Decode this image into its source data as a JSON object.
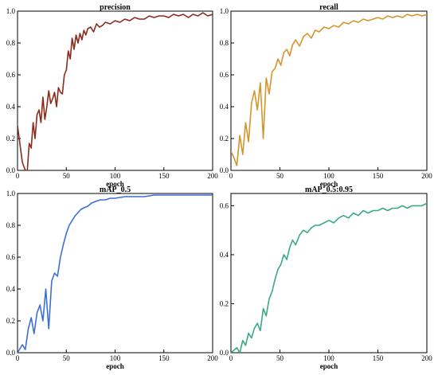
{
  "chart_data": [
    {
      "type": "line",
      "title": "precision",
      "xlabel": "epoch",
      "ylabel": "",
      "xlim": [
        0,
        200
      ],
      "ylim": [
        0,
        1.0
      ],
      "xticks": [
        0,
        50,
        100,
        150,
        200
      ],
      "yticks": [
        0,
        0.2,
        0.4,
        0.6,
        0.8,
        1.0
      ],
      "grid": false,
      "series": [
        {
          "color": "#8b2b1a",
          "x": [
            0,
            5,
            8,
            10,
            12,
            14,
            16,
            18,
            20,
            22,
            24,
            26,
            28,
            30,
            32,
            34,
            36,
            38,
            40,
            42,
            44,
            46,
            48,
            50,
            52,
            54,
            56,
            58,
            60,
            62,
            64,
            66,
            68,
            70,
            72,
            75,
            78,
            81,
            84,
            87,
            90,
            95,
            100,
            105,
            110,
            115,
            120,
            125,
            130,
            135,
            140,
            145,
            150,
            155,
            160,
            165,
            170,
            175,
            180,
            185,
            190,
            195,
            200
          ],
          "values": [
            0.28,
            0.05,
            0.0,
            0.0,
            0.17,
            0.14,
            0.3,
            0.2,
            0.35,
            0.38,
            0.3,
            0.46,
            0.32,
            0.4,
            0.5,
            0.42,
            0.45,
            0.49,
            0.4,
            0.52,
            0.49,
            0.48,
            0.6,
            0.63,
            0.75,
            0.7,
            0.83,
            0.76,
            0.85,
            0.8,
            0.86,
            0.82,
            0.88,
            0.85,
            0.89,
            0.9,
            0.87,
            0.92,
            0.9,
            0.91,
            0.93,
            0.92,
            0.94,
            0.93,
            0.95,
            0.94,
            0.96,
            0.95,
            0.95,
            0.97,
            0.96,
            0.97,
            0.97,
            0.96,
            0.98,
            0.97,
            0.98,
            0.96,
            0.98,
            0.97,
            0.99,
            0.97,
            0.98
          ]
        }
      ]
    },
    {
      "type": "line",
      "title": "recall",
      "xlabel": "epoch",
      "ylabel": "",
      "xlim": [
        0,
        200
      ],
      "ylim": [
        0,
        1.0
      ],
      "xticks": [
        0,
        50,
        100,
        150,
        200
      ],
      "yticks": [
        0,
        0.2,
        0.4,
        0.6,
        0.8,
        1.0
      ],
      "grid": false,
      "series": [
        {
          "color": "#d4952a",
          "x": [
            0,
            3,
            6,
            9,
            12,
            15,
            18,
            21,
            24,
            27,
            30,
            33,
            36,
            39,
            42,
            45,
            48,
            51,
            54,
            57,
            60,
            63,
            66,
            70,
            74,
            78,
            82,
            86,
            90,
            95,
            100,
            105,
            110,
            115,
            120,
            125,
            130,
            135,
            140,
            145,
            150,
            155,
            160,
            165,
            170,
            175,
            180,
            185,
            190,
            195,
            200
          ],
          "values": [
            0.12,
            0.08,
            0.03,
            0.22,
            0.1,
            0.3,
            0.18,
            0.42,
            0.5,
            0.38,
            0.55,
            0.2,
            0.58,
            0.48,
            0.62,
            0.64,
            0.7,
            0.66,
            0.74,
            0.76,
            0.72,
            0.79,
            0.82,
            0.78,
            0.84,
            0.86,
            0.83,
            0.88,
            0.87,
            0.9,
            0.89,
            0.91,
            0.9,
            0.93,
            0.92,
            0.94,
            0.93,
            0.95,
            0.94,
            0.95,
            0.96,
            0.95,
            0.97,
            0.96,
            0.97,
            0.96,
            0.98,
            0.97,
            0.98,
            0.97,
            0.98
          ]
        }
      ]
    },
    {
      "type": "line",
      "title": "mAP_0.5",
      "xlabel": "epoch",
      "ylabel": "",
      "xlim": [
        0,
        200
      ],
      "ylim": [
        0,
        1.0
      ],
      "xticks": [
        0,
        50,
        100,
        150,
        200
      ],
      "yticks": [
        0,
        0.2,
        0.4,
        0.6,
        0.8,
        1.0
      ],
      "grid": false,
      "series": [
        {
          "color": "#3c6fd6",
          "x": [
            0,
            5,
            8,
            11,
            14,
            17,
            20,
            23,
            26,
            29,
            32,
            35,
            38,
            41,
            44,
            47,
            50,
            53,
            56,
            59,
            62,
            65,
            68,
            72,
            76,
            80,
            85,
            90,
            95,
            100,
            110,
            120,
            130,
            140,
            150,
            160,
            170,
            180,
            190,
            200
          ],
          "values": [
            0.0,
            0.05,
            0.02,
            0.15,
            0.22,
            0.12,
            0.25,
            0.3,
            0.2,
            0.4,
            0.15,
            0.45,
            0.5,
            0.48,
            0.6,
            0.68,
            0.75,
            0.8,
            0.83,
            0.86,
            0.88,
            0.9,
            0.91,
            0.92,
            0.94,
            0.95,
            0.96,
            0.96,
            0.97,
            0.97,
            0.98,
            0.98,
            0.98,
            0.99,
            0.99,
            0.99,
            0.99,
            0.99,
            0.99,
            0.99
          ]
        }
      ]
    },
    {
      "type": "line",
      "title": "mAP_0.5:0.95",
      "xlabel": "epoch",
      "ylabel": "",
      "xlim": [
        0,
        200
      ],
      "ylim": [
        0,
        0.65
      ],
      "xticks": [
        0,
        50,
        100,
        150,
        200
      ],
      "yticks": [
        0,
        0.2,
        0.4,
        0.6
      ],
      "grid": false,
      "series": [
        {
          "color": "#3aaa85",
          "x": [
            0,
            6,
            9,
            12,
            15,
            18,
            21,
            24,
            27,
            30,
            33,
            36,
            39,
            42,
            45,
            48,
            51,
            54,
            57,
            60,
            63,
            66,
            70,
            74,
            78,
            82,
            86,
            90,
            95,
            100,
            105,
            110,
            115,
            120,
            125,
            130,
            135,
            140,
            145,
            150,
            155,
            160,
            165,
            170,
            175,
            180,
            185,
            190,
            195,
            200
          ],
          "values": [
            0.0,
            0.02,
            0.0,
            0.05,
            0.03,
            0.08,
            0.06,
            0.1,
            0.12,
            0.09,
            0.18,
            0.15,
            0.22,
            0.25,
            0.3,
            0.34,
            0.36,
            0.4,
            0.38,
            0.43,
            0.46,
            0.44,
            0.48,
            0.5,
            0.49,
            0.51,
            0.52,
            0.52,
            0.53,
            0.54,
            0.53,
            0.55,
            0.56,
            0.55,
            0.57,
            0.56,
            0.58,
            0.57,
            0.58,
            0.58,
            0.59,
            0.58,
            0.59,
            0.59,
            0.6,
            0.59,
            0.6,
            0.6,
            0.6,
            0.61
          ]
        }
      ]
    }
  ]
}
